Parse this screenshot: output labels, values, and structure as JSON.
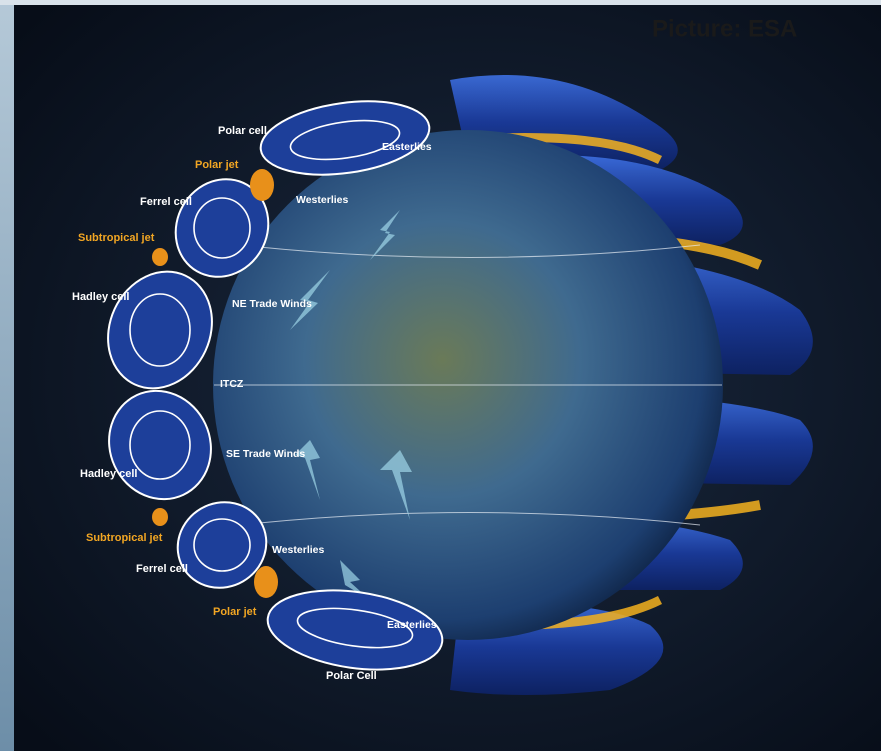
{
  "credit": "Picture: ESA",
  "labels": [
    "Polar cell",
    "Polar jet",
    "Ferrel cell",
    "Subtropical jet",
    "Hadley cell",
    "Easterlies",
    "Westerlies",
    "NE Trade Winds",
    "ITCZ",
    "SE Trade Winds",
    "Hadley cell",
    "Subtropical jet",
    "Ferrel cell",
    "Westerlies",
    "Polar jet",
    "Easterlies",
    "Polar Cell"
  ]
}
